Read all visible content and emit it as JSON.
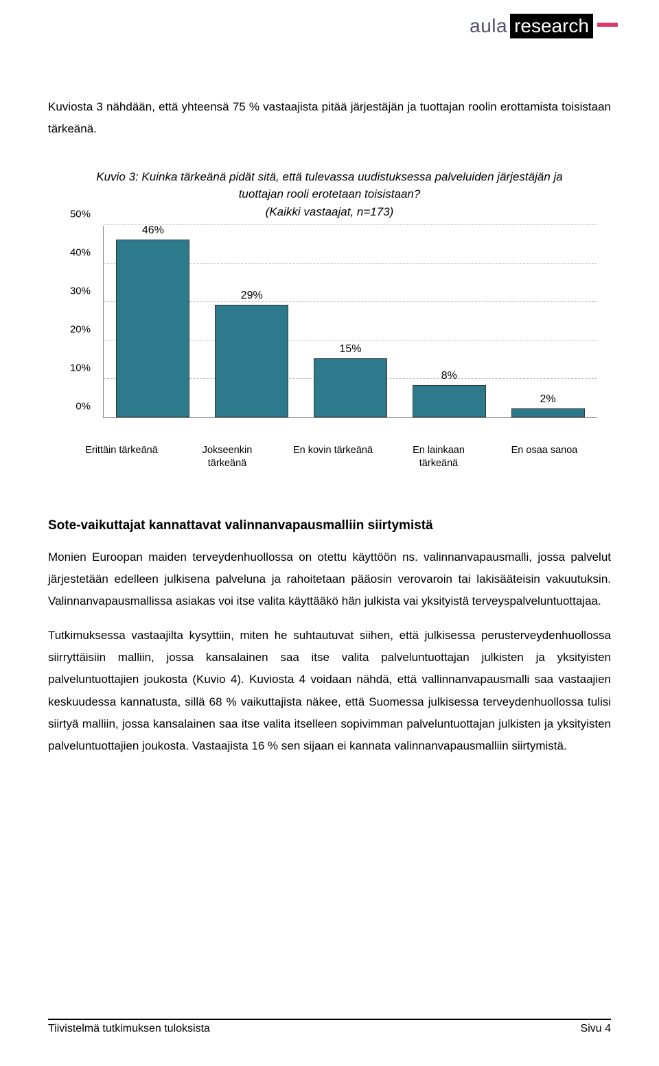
{
  "logo": {
    "part1": "aula",
    "part2": "research"
  },
  "intro_text": "Kuviosta 3 nähdään, että yhteensä 75 % vastaajista pitää järjestäjän ja tuottajan roolin erottamista toisistaan tärkeänä.",
  "chart": {
    "type": "bar",
    "title_line1": "Kuvio 3: Kuinka tärkeänä pidät sitä, että tulevassa uudistuksessa palveluiden järjestäjän ja tuottajan rooli erotetaan toisistaan?",
    "title_line2": "(Kaikki vastaajat, n=173)",
    "ylim_max": 50,
    "ytick_step": 10,
    "yticks": [
      "0%",
      "10%",
      "20%",
      "30%",
      "40%",
      "50%"
    ],
    "bar_color": "#2d7a8c",
    "grid_color": "#bbbbbb",
    "axis_color": "#888888",
    "background": "#ffffff",
    "categories": [
      {
        "label": "Erittäin tärkeänä",
        "value": 46,
        "display": "46%"
      },
      {
        "label": "Jokseenkin tärkeänä",
        "value": 29,
        "display": "29%"
      },
      {
        "label": "En kovin tärkeänä",
        "value": 15,
        "display": "15%"
      },
      {
        "label": "En lainkaan tärkeänä",
        "value": 8,
        "display": "8%"
      },
      {
        "label": "En osaa sanoa",
        "value": 2,
        "display": "2%"
      }
    ]
  },
  "section_heading": "Sote-vaikuttajat kannattavat valinnanvapausmalliin siirtymistä",
  "para1": "Monien Euroopan maiden terveydenhuollossa on otettu käyttöön ns. valinnanvapausmalli, jossa palvelut järjestetään edelleen julkisena palveluna ja rahoitetaan pääosin verovaroin tai lakisääteisin vakuutuksin. Valinnanvapausmallissa asiakas voi itse valita käyttääkö hän julkista vai yksityistä terveyspalveluntuottajaa.",
  "para2": "Tutkimuksessa vastaajilta kysyttiin, miten he suhtautuvat siihen, että julkisessa perusterveydenhuollossa siirryttäisiin malliin, jossa kansalainen saa itse valita palveluntuottajan julkisten ja yksityisten palveluntuottajien joukosta (Kuvio 4). Kuviosta 4 voidaan nähdä, että vallinnanvapausmalli saa vastaajien keskuudessa kannatusta, sillä 68 % vaikuttajista näkee, että Suomessa julkisessa terveydenhuollossa tulisi siirtyä malliin, jossa kansalainen saa itse valita itselleen sopivimman palveluntuottajan julkisten ja yksityisten palveluntuottajien joukosta. Vastaajista 16 % sen sijaan ei kannata valinnanvapausmalliin siirtymistä.",
  "footer_left": "Tiivistelmä tutkimuksen tuloksista",
  "footer_right": "Sivu 4"
}
